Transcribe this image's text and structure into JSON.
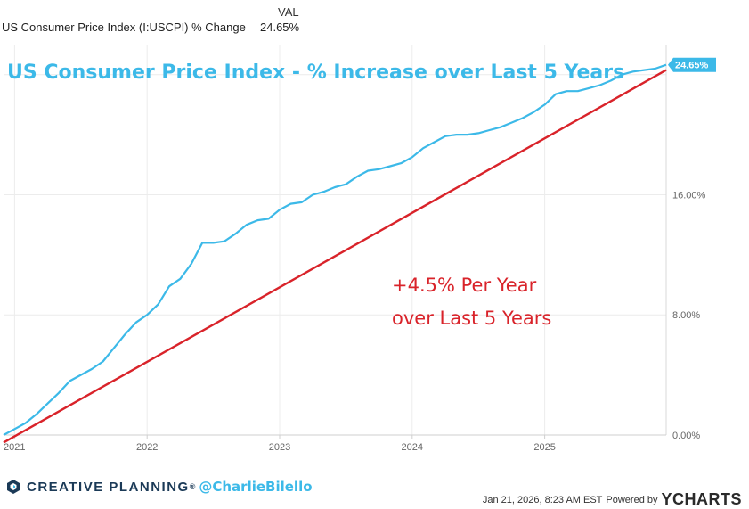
{
  "legend": {
    "header": "VAL",
    "series_name": "US Consumer Price Index (I:USCPI) % Change",
    "series_value": "24.65%"
  },
  "chart_data": {
    "type": "line",
    "title": "US Consumer Price Index - % Increase over Last 5 Years",
    "annotation_line1": "+4.5% Per Year",
    "annotation_line2": "over Last 5 Years",
    "last_value_label": "24.65%",
    "x_ticks": [
      "2021",
      "2022",
      "2023",
      "2024",
      "2025"
    ],
    "y_ticks": [
      "0.00%",
      "8.00%",
      "16.00%"
    ],
    "xlim": [
      "2020-12-01",
      "2025-12-01"
    ],
    "ylim": [
      0,
      26
    ],
    "grid": true,
    "series": [
      {
        "color": "#3cb9e8",
        "x": [
          "2020-12",
          "2021-01",
          "2021-02",
          "2021-03",
          "2021-04",
          "2021-05",
          "2021-06",
          "2021-07",
          "2021-08",
          "2021-09",
          "2021-10",
          "2021-11",
          "2021-12",
          "2022-01",
          "2022-02",
          "2022-03",
          "2022-04",
          "2022-05",
          "2022-06",
          "2022-07",
          "2022-08",
          "2022-09",
          "2022-10",
          "2022-11",
          "2022-12",
          "2023-01",
          "2023-02",
          "2023-03",
          "2023-04",
          "2023-05",
          "2023-06",
          "2023-07",
          "2023-08",
          "2023-09",
          "2023-10",
          "2023-11",
          "2023-12",
          "2024-01",
          "2024-02",
          "2024-03",
          "2024-04",
          "2024-05",
          "2024-06",
          "2024-07",
          "2024-08",
          "2024-09",
          "2024-10",
          "2024-11",
          "2024-12",
          "2025-01",
          "2025-02",
          "2025-03",
          "2025-04",
          "2025-05",
          "2025-06",
          "2025-07",
          "2025-08",
          "2025-09",
          "2025-10",
          "2025-11",
          "2025-12"
        ],
        "values": [
          0.0,
          0.4,
          0.8,
          1.4,
          2.1,
          2.8,
          3.6,
          4.0,
          4.4,
          4.9,
          5.8,
          6.7,
          7.5,
          8.0,
          8.7,
          9.9,
          10.4,
          11.4,
          12.8,
          12.8,
          12.9,
          13.4,
          14.0,
          14.3,
          14.4,
          15.0,
          15.4,
          15.5,
          16.0,
          16.2,
          16.5,
          16.7,
          17.2,
          17.6,
          17.7,
          17.9,
          18.1,
          18.5,
          19.1,
          19.5,
          19.9,
          20.0,
          20.0,
          20.1,
          20.3,
          20.5,
          20.8,
          21.1,
          21.5,
          22.0,
          22.7,
          22.9,
          22.9,
          23.1,
          23.3,
          23.6,
          24.0,
          24.2,
          24.3,
          24.4,
          24.65
        ]
      },
      {
        "color": "#d9232a",
        "x": [
          "2020-12",
          "2025-12"
        ],
        "values": [
          -0.5,
          24.3
        ]
      }
    ]
  },
  "footer": {
    "brand": "CREATIVE PLANNING",
    "reg_mark": "®",
    "handle": "@CharlieBilello",
    "timestamp": "Jan 21, 2026, 8:23 AM EST",
    "powered_by": "Powered by",
    "ycharts": "YCHARTS"
  }
}
